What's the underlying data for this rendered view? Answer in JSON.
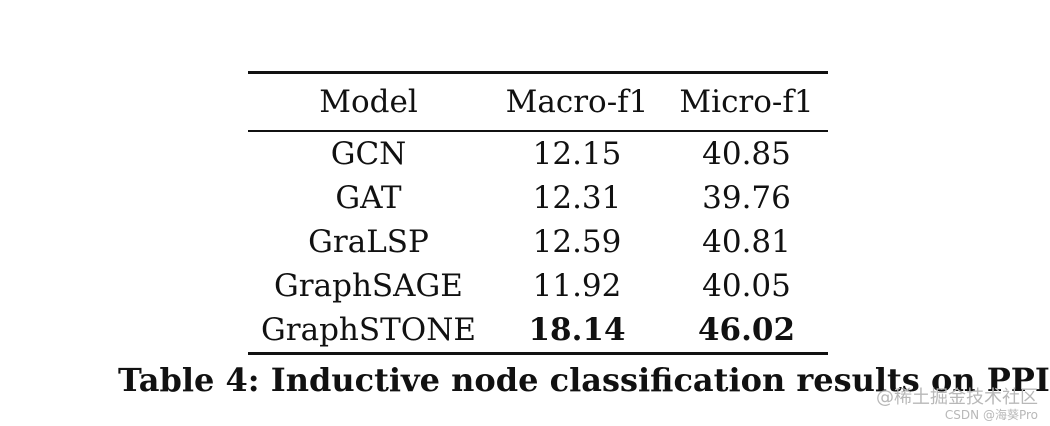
{
  "table": {
    "headers": [
      "Model",
      "Macro-f1",
      "Micro-f1"
    ],
    "rows": [
      [
        "GCN",
        "12.15",
        "40.85"
      ],
      [
        "GAT",
        "12.31",
        "39.76"
      ],
      [
        "GraLSP",
        "12.59",
        "40.81"
      ],
      [
        "GraphSAGE",
        "11.92",
        "40.05"
      ],
      [
        "GraphSTONE",
        "18.14",
        "46.02"
      ]
    ],
    "bold_cells": [
      [
        4,
        1
      ],
      [
        4,
        2
      ]
    ]
  },
  "caption": "Table 4: Inductive node classification results on PPI.",
  "watermark": {
    "line1": "@稀土掘金技术社区",
    "line2": "CSDN @海葵Pro"
  }
}
